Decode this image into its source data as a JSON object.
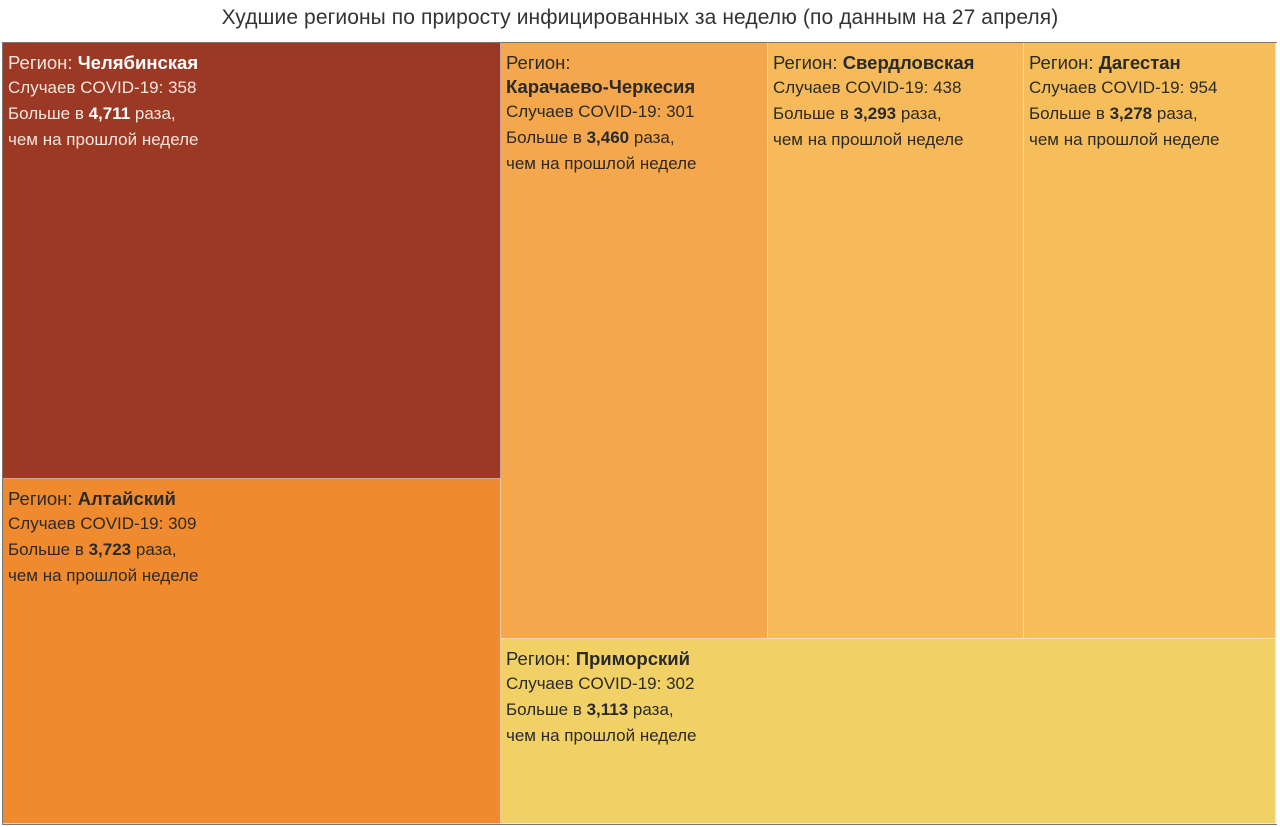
{
  "title": "Худшие регионы по приросту инфицированных за неделю (по данным на 27 апреля)",
  "labels": {
    "region_prefix": "Регион:",
    "cases_prefix": "Случаев COVID-19:",
    "more_prefix": "Больше в",
    "more_suffix": "раза,",
    "last_week": "чем на прошлой неделе"
  },
  "chart_data": {
    "type": "treemap",
    "title": "Худшие регионы по приросту инфицированных за неделю (по данным на 27 апреля)",
    "size_measure": "growth_ratio",
    "color_measure": "growth_ratio",
    "items": [
      {
        "region": "Челябинская",
        "cases": 358,
        "ratio": "4,711",
        "color": "#9b3925"
      },
      {
        "region": "Алтайский",
        "cases": 309,
        "ratio": "3,723",
        "color": "#f08a2e"
      },
      {
        "region": "Карачаево-Черкесия",
        "cases": 301,
        "ratio": "3,460",
        "color": "#f4a74d"
      },
      {
        "region": "Свердловская",
        "cases": 438,
        "ratio": "3,293",
        "color": "#f6ba5a"
      },
      {
        "region": "Дагестан",
        "cases": 954,
        "ratio": "3,278",
        "color": "#f6bd5b"
      },
      {
        "region": "Приморский",
        "cases": 302,
        "ratio": "3,113",
        "color": "#f1d066"
      }
    ]
  }
}
